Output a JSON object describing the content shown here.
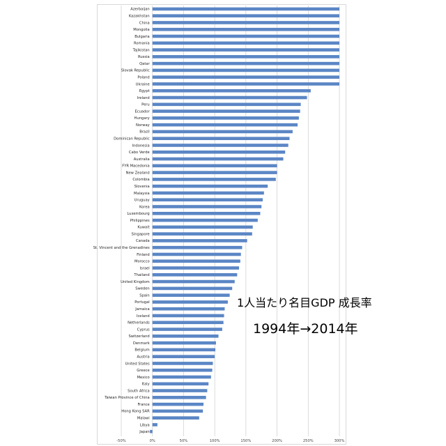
{
  "annotation": {
    "title": "1人当たり名目GDP 成長率",
    "subtitle": "1994年→2014年"
  },
  "chart_data": {
    "type": "bar",
    "orientation": "horizontal",
    "bar_color": "#5b86c5",
    "grid": true,
    "xlim": [
      -50,
      300
    ],
    "x_ticks": [
      -50,
      0,
      50,
      100,
      150,
      200,
      250,
      300
    ],
    "x_tick_labels": [
      "-50%",
      "0%",
      "50%",
      "100%",
      "150%",
      "200%",
      "250%",
      "300%"
    ],
    "categories": [
      "Azerbaijan",
      "Kazakhstan",
      "China",
      "Mongolia",
      "Bulgaria",
      "Romania",
      "Tajikistan",
      "Russia",
      "Qatar",
      "Slovak Republic",
      "Poland",
      "Ukraine",
      "Egypt",
      "Ireland",
      "Peru",
      "Ecuador",
      "Hungary",
      "Norway",
      "Brazil",
      "Dominican Republic",
      "Indonesia",
      "Cabo Verde",
      "Australia",
      "FYR Macedonia",
      "New Zealand",
      "Colombia",
      "Slovenia",
      "Malaysia",
      "Uruguay",
      "Korea",
      "Luxembourg",
      "Philippines",
      "Kuwait",
      "Singapore",
      "Canada",
      "St. Vincent and the Grenadines",
      "Finland",
      "Morocco",
      "Israel",
      "Thailand",
      "United Kingdom",
      "Sweden",
      "Spain",
      "Portugal",
      "Jamaica",
      "Iceland",
      "Netherlands",
      "Cyprus",
      "Switzerland",
      "Denmark",
      "Belgium",
      "Austria",
      "United States",
      "Greece",
      "Mexico",
      "Italy",
      "South Africa",
      "Taiwan Province of China",
      "France",
      "Hong Kong SAR",
      "Malawi",
      "Libya",
      "Japan"
    ],
    "values": [
      300,
      300,
      300,
      300,
      300,
      300,
      300,
      300,
      300,
      300,
      300,
      300,
      254,
      248,
      238,
      237,
      235,
      233,
      225,
      220,
      218,
      213,
      210,
      200,
      200,
      198,
      185,
      179,
      177,
      175,
      173,
      169,
      161,
      160,
      152,
      144,
      142,
      141,
      139,
      136,
      132,
      128,
      124,
      121,
      116,
      115,
      114,
      112,
      106,
      102,
      101,
      100,
      97,
      96,
      94,
      90,
      88,
      86,
      82,
      81,
      75,
      8,
      -4
    ]
  }
}
